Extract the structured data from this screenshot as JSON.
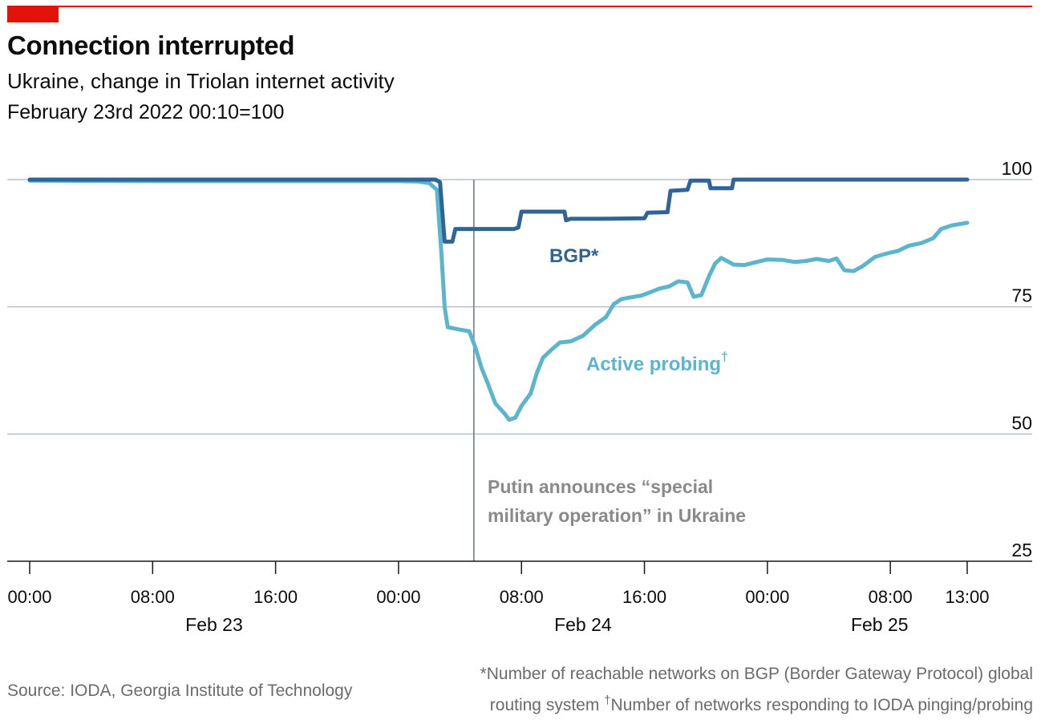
{
  "header": {
    "title": "Connection interrupted",
    "subtitle": "Ukraine, change in Triolan internet activity",
    "baseline_note": "February 23rd 2022 00:10=100"
  },
  "footer": {
    "source": "Source: IODA, Georgia Institute of Technology",
    "footnote_bgp": "*Number of reachable networks on BGP (Border Gateway Protocol) global routing system",
    "footnote_dagger": "†",
    "footnote_probing": "Number of networks responding to IODA pinging/probing"
  },
  "colors": {
    "accent_red": "#e3120b",
    "bgp_line": "#2e6596",
    "probing_line": "#5bb5cd",
    "annotation_line": "#7c8a96",
    "grid": "#b7c0c8"
  },
  "chart_data": {
    "type": "line",
    "title": "Connection interrupted",
    "x_unit": "hours since Feb 23 00:00",
    "ylim": [
      25,
      100
    ],
    "xlim": [
      0,
      61
    ],
    "y_ticks": [
      100,
      75,
      50,
      25
    ],
    "x_ticks": [
      {
        "x": 0,
        "label": "00:00"
      },
      {
        "x": 8,
        "label": "08:00"
      },
      {
        "x": 16,
        "label": "16:00"
      },
      {
        "x": 24,
        "label": "00:00"
      },
      {
        "x": 32,
        "label": "08:00"
      },
      {
        "x": 40,
        "label": "16:00"
      },
      {
        "x": 48,
        "label": "00:00"
      },
      {
        "x": 56,
        "label": "08:00"
      },
      {
        "x": 61,
        "label": "13:00"
      }
    ],
    "day_labels": [
      {
        "x": 12,
        "label": "Feb 23"
      },
      {
        "x": 36,
        "label": "Feb 24"
      },
      {
        "x": 55.3,
        "label": "Feb 25"
      }
    ],
    "grid": true,
    "series": [
      {
        "name": "BGP*",
        "points": [
          [
            0,
            100
          ],
          [
            26.4,
            100
          ],
          [
            26.7,
            99.5
          ],
          [
            27.0,
            87.8
          ],
          [
            27.5,
            87.8
          ],
          [
            27.7,
            90.3
          ],
          [
            31.5,
            90.3
          ],
          [
            31.8,
            90.6
          ],
          [
            32.0,
            93.7
          ],
          [
            34.8,
            93.7
          ],
          [
            34.9,
            92.0
          ],
          [
            35.2,
            92.3
          ],
          [
            37.0,
            92.3
          ],
          [
            40.0,
            92.4
          ],
          [
            40.2,
            93.5
          ],
          [
            41.5,
            93.6
          ],
          [
            41.7,
            97.8
          ],
          [
            42.8,
            98.0
          ],
          [
            43.0,
            99.8
          ],
          [
            44.2,
            99.8
          ],
          [
            44.3,
            98.3
          ],
          [
            45.7,
            98.3
          ],
          [
            45.8,
            100
          ],
          [
            61,
            100
          ]
        ]
      },
      {
        "name": "Active probing",
        "points": [
          [
            0,
            99.8
          ],
          [
            8,
            99.7
          ],
          [
            16,
            99.7
          ],
          [
            24,
            99.7
          ],
          [
            25.3,
            99.6
          ],
          [
            26,
            99.3
          ],
          [
            26.5,
            98.0
          ],
          [
            26.8,
            85.0
          ],
          [
            27.0,
            75.0
          ],
          [
            27.2,
            71.0
          ],
          [
            28.0,
            70.5
          ],
          [
            28.6,
            70.2
          ],
          [
            29.0,
            67.0
          ],
          [
            29.4,
            63.0
          ],
          [
            29.8,
            60.0
          ],
          [
            30.3,
            56.0
          ],
          [
            30.9,
            54.0
          ],
          [
            31.2,
            52.8
          ],
          [
            31.6,
            53.2
          ],
          [
            32.0,
            55.5
          ],
          [
            32.6,
            58.0
          ],
          [
            33.0,
            62.0
          ],
          [
            33.4,
            65.0
          ],
          [
            34.0,
            66.7
          ],
          [
            34.5,
            68.0
          ],
          [
            35.2,
            68.2
          ],
          [
            36.0,
            69.3
          ],
          [
            36.8,
            71.5
          ],
          [
            37.5,
            73.0
          ],
          [
            38.0,
            75.5
          ],
          [
            38.5,
            76.5
          ],
          [
            39.0,
            76.8
          ],
          [
            39.8,
            77.2
          ],
          [
            40.5,
            78.0
          ],
          [
            41.0,
            78.6
          ],
          [
            41.6,
            79.0
          ],
          [
            42.2,
            80.0
          ],
          [
            42.8,
            79.8
          ],
          [
            43.2,
            77.0
          ],
          [
            43.7,
            77.3
          ],
          [
            44.2,
            81.0
          ],
          [
            44.6,
            83.5
          ],
          [
            45.0,
            84.6
          ],
          [
            45.8,
            83.3
          ],
          [
            46.5,
            83.2
          ],
          [
            47.3,
            83.8
          ],
          [
            48.0,
            84.3
          ],
          [
            49.0,
            84.2
          ],
          [
            49.8,
            83.8
          ],
          [
            50.5,
            84.0
          ],
          [
            51.2,
            84.4
          ],
          [
            52.0,
            84.0
          ],
          [
            52.5,
            84.5
          ],
          [
            53.0,
            82.2
          ],
          [
            53.6,
            82.0
          ],
          [
            54.2,
            83.0
          ],
          [
            55.0,
            84.8
          ],
          [
            55.8,
            85.5
          ],
          [
            56.5,
            86.0
          ],
          [
            57.2,
            87.0
          ],
          [
            58.0,
            87.5
          ],
          [
            58.8,
            88.5
          ],
          [
            59.3,
            90.3
          ],
          [
            60.0,
            91.0
          ],
          [
            60.6,
            91.3
          ],
          [
            61.0,
            91.5
          ]
        ]
      }
    ],
    "series_labels": {
      "bgp": "BGP*",
      "probing": "Active probing",
      "probing_mark": "†"
    },
    "annotation": {
      "x": 28.9,
      "line1": "Putin announces “special",
      "line2": "military operation” in Ukraine"
    }
  }
}
